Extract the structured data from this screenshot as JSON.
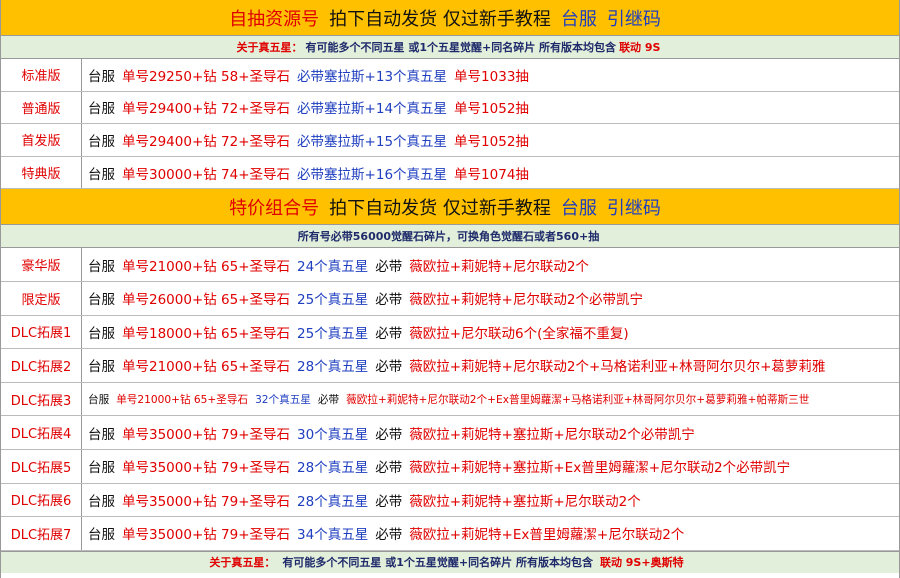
{
  "sections": [
    {
      "header": [
        {
          "text": "自抽资源号",
          "color": "#e00000"
        },
        {
          "text": "拍下自动发货 仅过新手教程",
          "color": "#111111"
        },
        {
          "text": "台服",
          "color": "#1f3fbf"
        },
        {
          "text": "引继码",
          "color": "#1f3fbf"
        }
      ],
      "note": [
        {
          "text": "关于真五星：",
          "color": "#e00000"
        },
        {
          "text": "有可能多个不同五星 或1个五星觉醒+同名碎片 所有版本均包含",
          "color": "#1f2a6b"
        },
        {
          "text": "联动 9S",
          "color": "#e00000"
        }
      ],
      "rows": [
        {
          "label": "标准版",
          "segments": [
            {
              "text": "台服",
              "color": "#111111"
            },
            {
              "text": "单号29250+钻 58+圣导石",
              "color": "#e00000"
            },
            {
              "text": "必带塞拉斯+13个真五星",
              "color": "#1f3fbf"
            },
            {
              "text": "单号1033抽",
              "color": "#e00000"
            }
          ]
        },
        {
          "label": "普通版",
          "segments": [
            {
              "text": "台服",
              "color": "#111111"
            },
            {
              "text": "单号29400+钻 72+圣导石",
              "color": "#e00000"
            },
            {
              "text": "必带塞拉斯+14个真五星",
              "color": "#1f3fbf"
            },
            {
              "text": "单号1052抽",
              "color": "#e00000"
            }
          ]
        },
        {
          "label": "首发版",
          "segments": [
            {
              "text": "台服",
              "color": "#111111"
            },
            {
              "text": "单号29400+钻 72+圣导石",
              "color": "#e00000"
            },
            {
              "text": "必带塞拉斯+15个真五星",
              "color": "#1f3fbf"
            },
            {
              "text": "单号1052抽",
              "color": "#e00000"
            }
          ]
        },
        {
          "label": "特典版",
          "segments": [
            {
              "text": "台服",
              "color": "#111111"
            },
            {
              "text": "单号30000+钻 74+圣导石",
              "color": "#e00000"
            },
            {
              "text": "必带塞拉斯+16个真五星",
              "color": "#1f3fbf"
            },
            {
              "text": "单号1074抽",
              "color": "#e00000"
            }
          ]
        }
      ]
    },
    {
      "header": [
        {
          "text": "特价组合号",
          "color": "#e00000"
        },
        {
          "text": "拍下自动发货 仅过新手教程",
          "color": "#111111"
        },
        {
          "text": "台服",
          "color": "#1f3fbf"
        },
        {
          "text": "引继码",
          "color": "#1f3fbf"
        }
      ],
      "note": [
        {
          "text": "所有号必带56000觉醒石碎片，可换角色觉醒石或者560+抽",
          "color": "#1f2a6b"
        }
      ],
      "rows": [
        {
          "label": "豪华版",
          "segments": [
            {
              "text": "台服",
              "color": "#111111"
            },
            {
              "text": "单号21000+钻 65+圣导石",
              "color": "#e00000"
            },
            {
              "text": "24个真五星",
              "color": "#1f3fbf"
            },
            {
              "text": "必带",
              "color": "#111111"
            },
            {
              "text": "薇欧拉+莉妮特+尼尔联动2个",
              "color": "#e00000"
            }
          ]
        },
        {
          "label": "限定版",
          "segments": [
            {
              "text": "台服",
              "color": "#111111"
            },
            {
              "text": "单号26000+钻 65+圣导石",
              "color": "#e00000"
            },
            {
              "text": "25个真五星",
              "color": "#1f3fbf"
            },
            {
              "text": "必带",
              "color": "#111111"
            },
            {
              "text": "薇欧拉+莉妮特+尼尔联动2个必带凯宁",
              "color": "#e00000"
            }
          ]
        },
        {
          "label": "DLC拓展1",
          "segments": [
            {
              "text": "台服",
              "color": "#111111"
            },
            {
              "text": "单号18000+钻 65+圣导石",
              "color": "#e00000"
            },
            {
              "text": "25个真五星",
              "color": "#1f3fbf"
            },
            {
              "text": "必带",
              "color": "#111111"
            },
            {
              "text": "薇欧拉+尼尔联动6个(全家福不重复)",
              "color": "#e00000"
            }
          ]
        },
        {
          "label": "DLC拓展2",
          "segments": [
            {
              "text": "台服",
              "color": "#111111"
            },
            {
              "text": "单号21000+钻 65+圣导石",
              "color": "#e00000"
            },
            {
              "text": "28个真五星",
              "color": "#1f3fbf"
            },
            {
              "text": "必带",
              "color": "#111111"
            },
            {
              "text": "薇欧拉+莉妮特+尼尔联动2个+马格诺利亚+林哥阿尔贝尔+葛萝莉雅",
              "color": "#e00000"
            }
          ]
        },
        {
          "label": "DLC拓展3",
          "small": true,
          "segments": [
            {
              "text": "台服",
              "color": "#111111"
            },
            {
              "text": "单号21000+钻 65+圣导石",
              "color": "#e00000"
            },
            {
              "text": "32个真五星",
              "color": "#1f3fbf"
            },
            {
              "text": "必带",
              "color": "#111111"
            },
            {
              "text": "薇欧拉+莉妮特+尼尔联动2个+Ex普里姆蘿潔+马格诺利亚+林哥阿尔贝尔+葛萝莉雅+帕蒂斯三世",
              "color": "#e00000"
            }
          ]
        },
        {
          "label": "DLC拓展4",
          "segments": [
            {
              "text": "台服",
              "color": "#111111"
            },
            {
              "text": "单号35000+钻 79+圣导石",
              "color": "#e00000"
            },
            {
              "text": "30个真五星",
              "color": "#1f3fbf"
            },
            {
              "text": "必带",
              "color": "#111111"
            },
            {
              "text": "薇欧拉+莉妮特+塞拉斯+尼尔联动2个必带凯宁",
              "color": "#e00000"
            }
          ]
        },
        {
          "label": "DLC拓展5",
          "segments": [
            {
              "text": "台服",
              "color": "#111111"
            },
            {
              "text": "单号35000+钻 79+圣导石",
              "color": "#e00000"
            },
            {
              "text": "28个真五星",
              "color": "#1f3fbf"
            },
            {
              "text": "必带",
              "color": "#111111"
            },
            {
              "text": "薇欧拉+莉妮特+塞拉斯+Ex普里姆蘿潔+尼尔联动2个必带凯宁",
              "color": "#e00000"
            }
          ]
        },
        {
          "label": "DLC拓展6",
          "segments": [
            {
              "text": "台服",
              "color": "#111111"
            },
            {
              "text": "单号35000+钻 79+圣导石",
              "color": "#e00000"
            },
            {
              "text": "28个真五星",
              "color": "#1f3fbf"
            },
            {
              "text": "必带",
              "color": "#111111"
            },
            {
              "text": "薇欧拉+莉妮特+塞拉斯+尼尔联动2个",
              "color": "#e00000"
            }
          ]
        },
        {
          "label": "DLC拓展7",
          "segments": [
            {
              "text": "台服",
              "color": "#111111"
            },
            {
              "text": "单号35000+钻 79+圣导石",
              "color": "#e00000"
            },
            {
              "text": "34个真五星",
              "color": "#1f3fbf"
            },
            {
              "text": "必带",
              "color": "#111111"
            },
            {
              "text": "薇欧拉+莉妮特+Ex普里姆蘿潔+尼尔联动2个",
              "color": "#e00000"
            }
          ]
        }
      ]
    }
  ],
  "footer": [
    {
      "text": "关于真五星：",
      "color": "#e00000"
    },
    {
      "text": "有可能多个不同五星 或1个五星觉醒+同名碎片 所有版本均包含",
      "color": "#1f2a6b"
    },
    {
      "text": "联动 9S+奥斯特",
      "color": "#e00000"
    }
  ]
}
